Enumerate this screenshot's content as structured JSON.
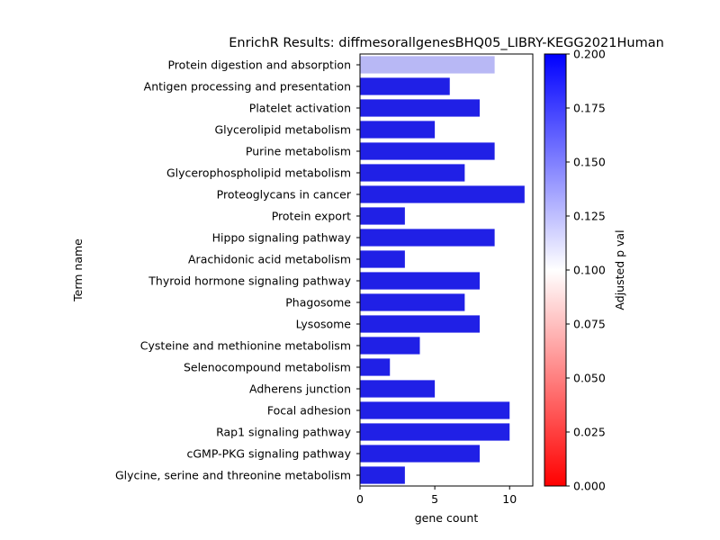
{
  "chart_data": {
    "type": "bar",
    "orientation": "horizontal",
    "title": "EnrichR Results: diffmesorallgenesBHQ05_LIBRY-KEGG2021Human",
    "xlabel": "gene count",
    "ylabel": "Term name",
    "xlim": [
      0,
      11.55
    ],
    "xticks": [
      0,
      5,
      10
    ],
    "categories": [
      "Protein digestion and absorption",
      "Antigen processing and presentation",
      "Platelet activation",
      "Glycerolipid metabolism",
      "Purine metabolism",
      "Glycerophospholipid metabolism",
      "Proteoglycans in cancer",
      "Protein export",
      "Hippo signaling pathway",
      "Arachidonic acid metabolism",
      "Thyroid hormone signaling pathway",
      "Phagosome",
      "Lysosome",
      "Cysteine and methionine metabolism",
      "Selenocompound metabolism",
      "Adherens junction",
      "Focal adhesion",
      "Rap1 signaling pathway",
      "cGMP-PKG signaling pathway",
      "Glycine, serine and threonine metabolism"
    ],
    "values": [
      9,
      6,
      8,
      5,
      9,
      7,
      11,
      3,
      9,
      3,
      8,
      7,
      8,
      4,
      2,
      5,
      10,
      10,
      8,
      3
    ],
    "bar_colors": [
      "#b8b8f5",
      "#2020e6",
      "#2020e6",
      "#2020e6",
      "#2020e6",
      "#2020e6",
      "#2020e6",
      "#2020e6",
      "#2020e6",
      "#2020e6",
      "#2020e6",
      "#2020e6",
      "#2020e6",
      "#2020e6",
      "#2020e6",
      "#2020e6",
      "#2020e6",
      "#2020e6",
      "#2020e6",
      "#2020e6"
    ],
    "colorbar": {
      "label": "Adjusted p val",
      "range": [
        0,
        0.2
      ],
      "ticks": [
        "0.000",
        "0.025",
        "0.050",
        "0.075",
        "0.100",
        "0.125",
        "0.150",
        "0.175",
        "0.200"
      ],
      "colors": [
        "#ff0000",
        "#ffffff",
        "#0000ff"
      ]
    }
  }
}
